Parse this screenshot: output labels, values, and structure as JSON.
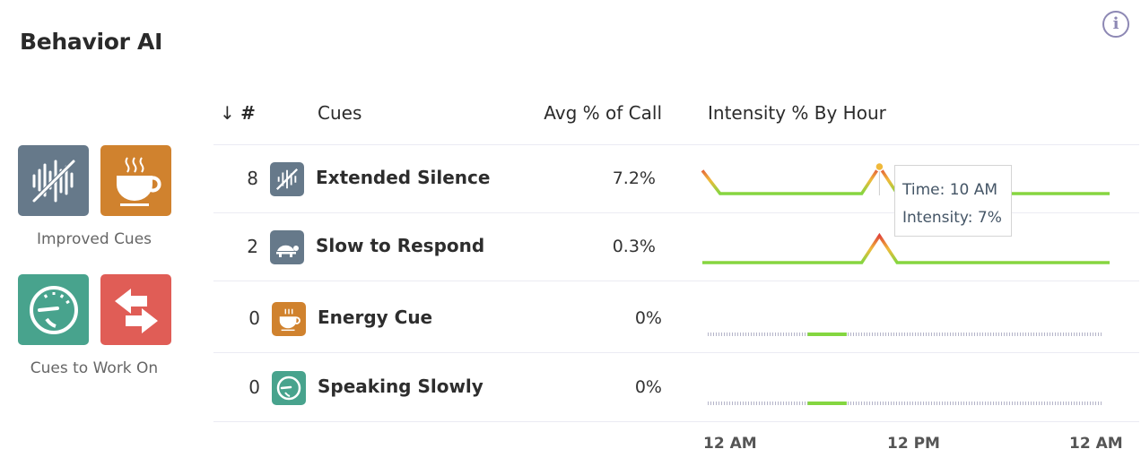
{
  "header": {
    "title": "Behavior AI",
    "info_icon": "info-circle-icon"
  },
  "legend": {
    "improved": {
      "label": "Improved Cues",
      "icons": [
        "extended-silence-icon",
        "energy-cue-icon"
      ]
    },
    "work_on": {
      "label": "Cues to Work On",
      "icons": [
        "speaking-slowly-icon",
        "interruption-arrows-icon"
      ]
    }
  },
  "table": {
    "columns": {
      "sort_icon": "arrow-down-icon",
      "count": "#",
      "cue": "Cues",
      "avg": "Avg % of Call",
      "intensity": "Intensity % By Hour"
    },
    "rows": [
      {
        "count": "8",
        "cue": "Extended Silence",
        "avg": "7.2%",
        "icon": "extended-silence-icon",
        "color": "#66798a"
      },
      {
        "count": "2",
        "cue": "Slow to Respond",
        "avg": "0.3%",
        "icon": "turtle-icon",
        "color": "#66798a"
      },
      {
        "count": "0",
        "cue": "Energy Cue",
        "avg": "0%",
        "icon": "coffee-cup-icon",
        "color": "#d0822e"
      },
      {
        "count": "0",
        "cue": "Speaking Slowly",
        "avg": "0%",
        "icon": "speedometer-icon",
        "color": "#48a38d"
      }
    ]
  },
  "chart_data": {
    "type": "line",
    "title": "Intensity % By Hour",
    "x_unit": "hour",
    "x": [
      0,
      1,
      2,
      3,
      4,
      5,
      6,
      7,
      8,
      9,
      10,
      11,
      12,
      13,
      14,
      15,
      16,
      17,
      18,
      19,
      20,
      21,
      22,
      23
    ],
    "x_tick_labels": [
      "12 AM",
      "12 PM",
      "12 AM"
    ],
    "series": [
      {
        "name": "Extended Silence",
        "values": [
          6,
          0,
          0,
          0,
          0,
          0,
          0,
          0,
          0,
          0,
          7,
          0,
          0,
          0,
          0,
          0,
          0,
          0,
          0,
          0,
          0,
          0,
          0,
          0
        ]
      },
      {
        "name": "Slow to Respond",
        "values": [
          0,
          0,
          0,
          0,
          0,
          0,
          0,
          0,
          0,
          0,
          7,
          0,
          0,
          0,
          0,
          0,
          0,
          0,
          0,
          0,
          0,
          0,
          0,
          0
        ]
      },
      {
        "name": "Energy Cue",
        "values": null,
        "highlight_hours": [
          6,
          8
        ]
      },
      {
        "name": "Speaking Slowly",
        "values": null,
        "highlight_hours": [
          6,
          8
        ]
      }
    ],
    "ylim": [
      0,
      7
    ],
    "colors": {
      "low": "#84d640",
      "mid": "#f0b93a",
      "high": "#e0473a",
      "empty": "#b4b4c8"
    }
  },
  "tooltip": {
    "time": "Time: 10 AM",
    "intensity": "Intensity: 7%"
  }
}
